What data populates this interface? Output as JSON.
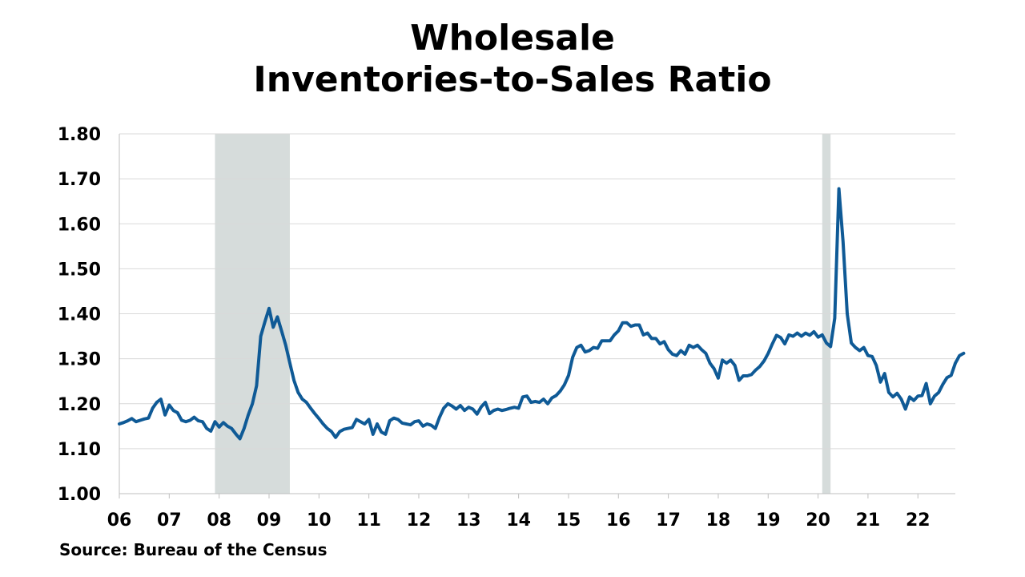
{
  "title_lines": [
    "Wholesale",
    "Inventories-to-Sales Ratio"
  ],
  "source": "Source: Bureau of the Census",
  "colors": {
    "line": "#0f5a96",
    "recession": "#d6dcdb",
    "grid": "#d9d9d9",
    "axis": "#bfbfbf"
  },
  "chart_data": {
    "type": "line",
    "title": "Wholesale Inventories-to-Sales Ratio",
    "xlabel": "",
    "ylabel": "",
    "ylim": [
      1.0,
      1.8
    ],
    "xlim": [
      2006.0,
      2022.75
    ],
    "grid": true,
    "legend": "none",
    "y_tick_labels": [
      "1.00",
      "1.10",
      "1.20",
      "1.30",
      "1.40",
      "1.50",
      "1.60",
      "1.70",
      "1.80"
    ],
    "y_tick_values": [
      1.0,
      1.1,
      1.2,
      1.3,
      1.4,
      1.5,
      1.6,
      1.7,
      1.8
    ],
    "x_tick_labels": [
      "06",
      "07",
      "08",
      "09",
      "10",
      "11",
      "12",
      "13",
      "14",
      "15",
      "16",
      "17",
      "18",
      "19",
      "20",
      "21",
      "22"
    ],
    "recessions": [
      {
        "start": "2007-12",
        "end": "2009-06"
      },
      {
        "start": "2020-02",
        "end": "2020-04"
      }
    ],
    "series": [
      {
        "start": "2006-01",
        "frequency": "monthly",
        "values": [
          1.155,
          1.158,
          1.162,
          1.167,
          1.16,
          1.163,
          1.166,
          1.168,
          1.19,
          1.203,
          1.21,
          1.175,
          1.197,
          1.185,
          1.18,
          1.163,
          1.16,
          1.163,
          1.17,
          1.162,
          1.16,
          1.145,
          1.139,
          1.16,
          1.148,
          1.158,
          1.15,
          1.145,
          1.133,
          1.122,
          1.145,
          1.175,
          1.2,
          1.24,
          1.35,
          1.382,
          1.412,
          1.37,
          1.393,
          1.362,
          1.33,
          1.29,
          1.252,
          1.225,
          1.21,
          1.203,
          1.19,
          1.178,
          1.167,
          1.155,
          1.145,
          1.138,
          1.125,
          1.138,
          1.143,
          1.145,
          1.147,
          1.165,
          1.16,
          1.155,
          1.165,
          1.132,
          1.155,
          1.137,
          1.132,
          1.162,
          1.168,
          1.165,
          1.157,
          1.155,
          1.153,
          1.16,
          1.162,
          1.15,
          1.155,
          1.152,
          1.145,
          1.17,
          1.19,
          1.2,
          1.195,
          1.188,
          1.196,
          1.185,
          1.192,
          1.188,
          1.177,
          1.193,
          1.203,
          1.178,
          1.185,
          1.188,
          1.185,
          1.187,
          1.19,
          1.192,
          1.19,
          1.215,
          1.217,
          1.203,
          1.205,
          1.203,
          1.21,
          1.2,
          1.213,
          1.218,
          1.228,
          1.242,
          1.263,
          1.303,
          1.325,
          1.33,
          1.315,
          1.318,
          1.325,
          1.323,
          1.34,
          1.34,
          1.34,
          1.353,
          1.362,
          1.38,
          1.38,
          1.372,
          1.375,
          1.375,
          1.353,
          1.357,
          1.345,
          1.345,
          1.333,
          1.338,
          1.32,
          1.31,
          1.307,
          1.318,
          1.31,
          1.33,
          1.325,
          1.33,
          1.32,
          1.312,
          1.29,
          1.278,
          1.257,
          1.297,
          1.29,
          1.297,
          1.285,
          1.252,
          1.262,
          1.262,
          1.265,
          1.275,
          1.283,
          1.295,
          1.312,
          1.333,
          1.352,
          1.347,
          1.333,
          1.353,
          1.35,
          1.357,
          1.35,
          1.357,
          1.352,
          1.36,
          1.348,
          1.353,
          1.335,
          1.327,
          1.39,
          1.678,
          1.56,
          1.4,
          1.335,
          1.325,
          1.318,
          1.325,
          1.307,
          1.305,
          1.285,
          1.248,
          1.267,
          1.225,
          1.215,
          1.223,
          1.21,
          1.188,
          1.215,
          1.207,
          1.217,
          1.218,
          1.245,
          1.2,
          1.217,
          1.225,
          1.243,
          1.258,
          1.263,
          1.29,
          1.307,
          1.312
        ]
      }
    ]
  }
}
